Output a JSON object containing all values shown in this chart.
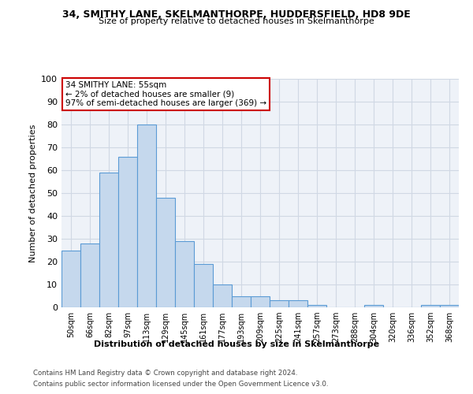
{
  "title_line1": "34, SMITHY LANE, SKELMANTHORPE, HUDDERSFIELD, HD8 9DE",
  "title_line2": "Size of property relative to detached houses in Skelmanthorpe",
  "xlabel": "Distribution of detached houses by size in Skelmanthorpe",
  "ylabel": "Number of detached properties",
  "bar_color": "#c5d8ed",
  "bar_edge_color": "#5b9bd5",
  "annotation_box_color": "#cc0000",
  "annotation_text": "34 SMITHY LANE: 55sqm\n← 2% of detached houses are smaller (9)\n97% of semi-detached houses are larger (369) →",
  "footer_line1": "Contains HM Land Registry data © Crown copyright and database right 2024.",
  "footer_line2": "Contains public sector information licensed under the Open Government Licence v3.0.",
  "categories": [
    "50sqm",
    "66sqm",
    "82sqm",
    "97sqm",
    "113sqm",
    "129sqm",
    "145sqm",
    "161sqm",
    "177sqm",
    "193sqm",
    "209sqm",
    "225sqm",
    "241sqm",
    "257sqm",
    "273sqm",
    "288sqm",
    "304sqm",
    "320sqm",
    "336sqm",
    "352sqm",
    "368sqm"
  ],
  "values": [
    25,
    28,
    59,
    66,
    80,
    48,
    29,
    19,
    10,
    5,
    5,
    3,
    3,
    1,
    0,
    0,
    1,
    0,
    0,
    1,
    1
  ],
  "ylim": [
    0,
    100
  ],
  "yticks": [
    0,
    10,
    20,
    30,
    40,
    50,
    60,
    70,
    80,
    90,
    100
  ],
  "grid_color": "#d0d8e4",
  "background_color": "#eef2f8"
}
